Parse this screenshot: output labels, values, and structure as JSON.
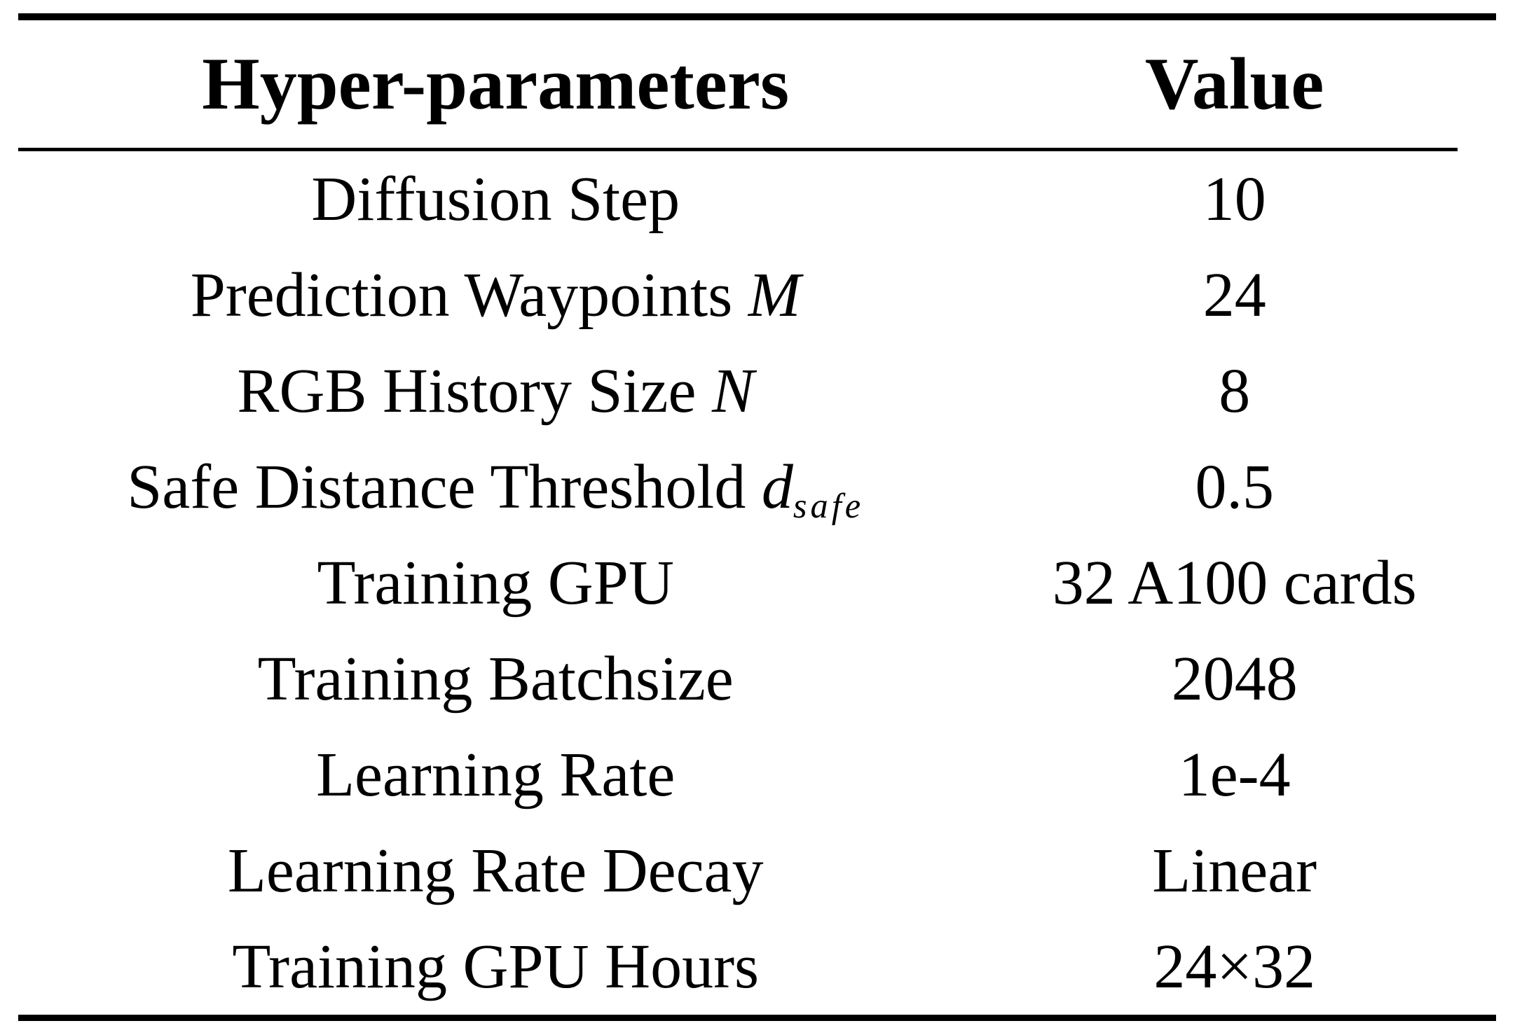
{
  "colors": {
    "text": "#000000",
    "background": "#ffffff",
    "rule": "#000000"
  },
  "table": {
    "columns": [
      "Hyper-parameters",
      "Value"
    ],
    "rows": [
      {
        "param": {
          "text": "Diffusion Step",
          "math": "",
          "sub": ""
        },
        "value": "10"
      },
      {
        "param": {
          "text": "Prediction Waypoints ",
          "math": "M",
          "sub": ""
        },
        "value": "24"
      },
      {
        "param": {
          "text": "RGB History Size ",
          "math": "N",
          "sub": ""
        },
        "value": "8"
      },
      {
        "param": {
          "text": "Safe Distance Threshold ",
          "math": "d",
          "sub": "safe"
        },
        "value": "0.5"
      },
      {
        "param": {
          "text": "Training GPU",
          "math": "",
          "sub": ""
        },
        "value": "32 A100 cards"
      },
      {
        "param": {
          "text": "Training Batchsize",
          "math": "",
          "sub": ""
        },
        "value": "2048"
      },
      {
        "param": {
          "text": "Learning Rate",
          "math": "",
          "sub": ""
        },
        "value": "1e-4"
      },
      {
        "param": {
          "text": "Learning Rate Decay",
          "math": "",
          "sub": ""
        },
        "value": "Linear"
      },
      {
        "param": {
          "text": "Training GPU Hours",
          "math": "",
          "sub": ""
        },
        "value": "24×32"
      }
    ]
  }
}
